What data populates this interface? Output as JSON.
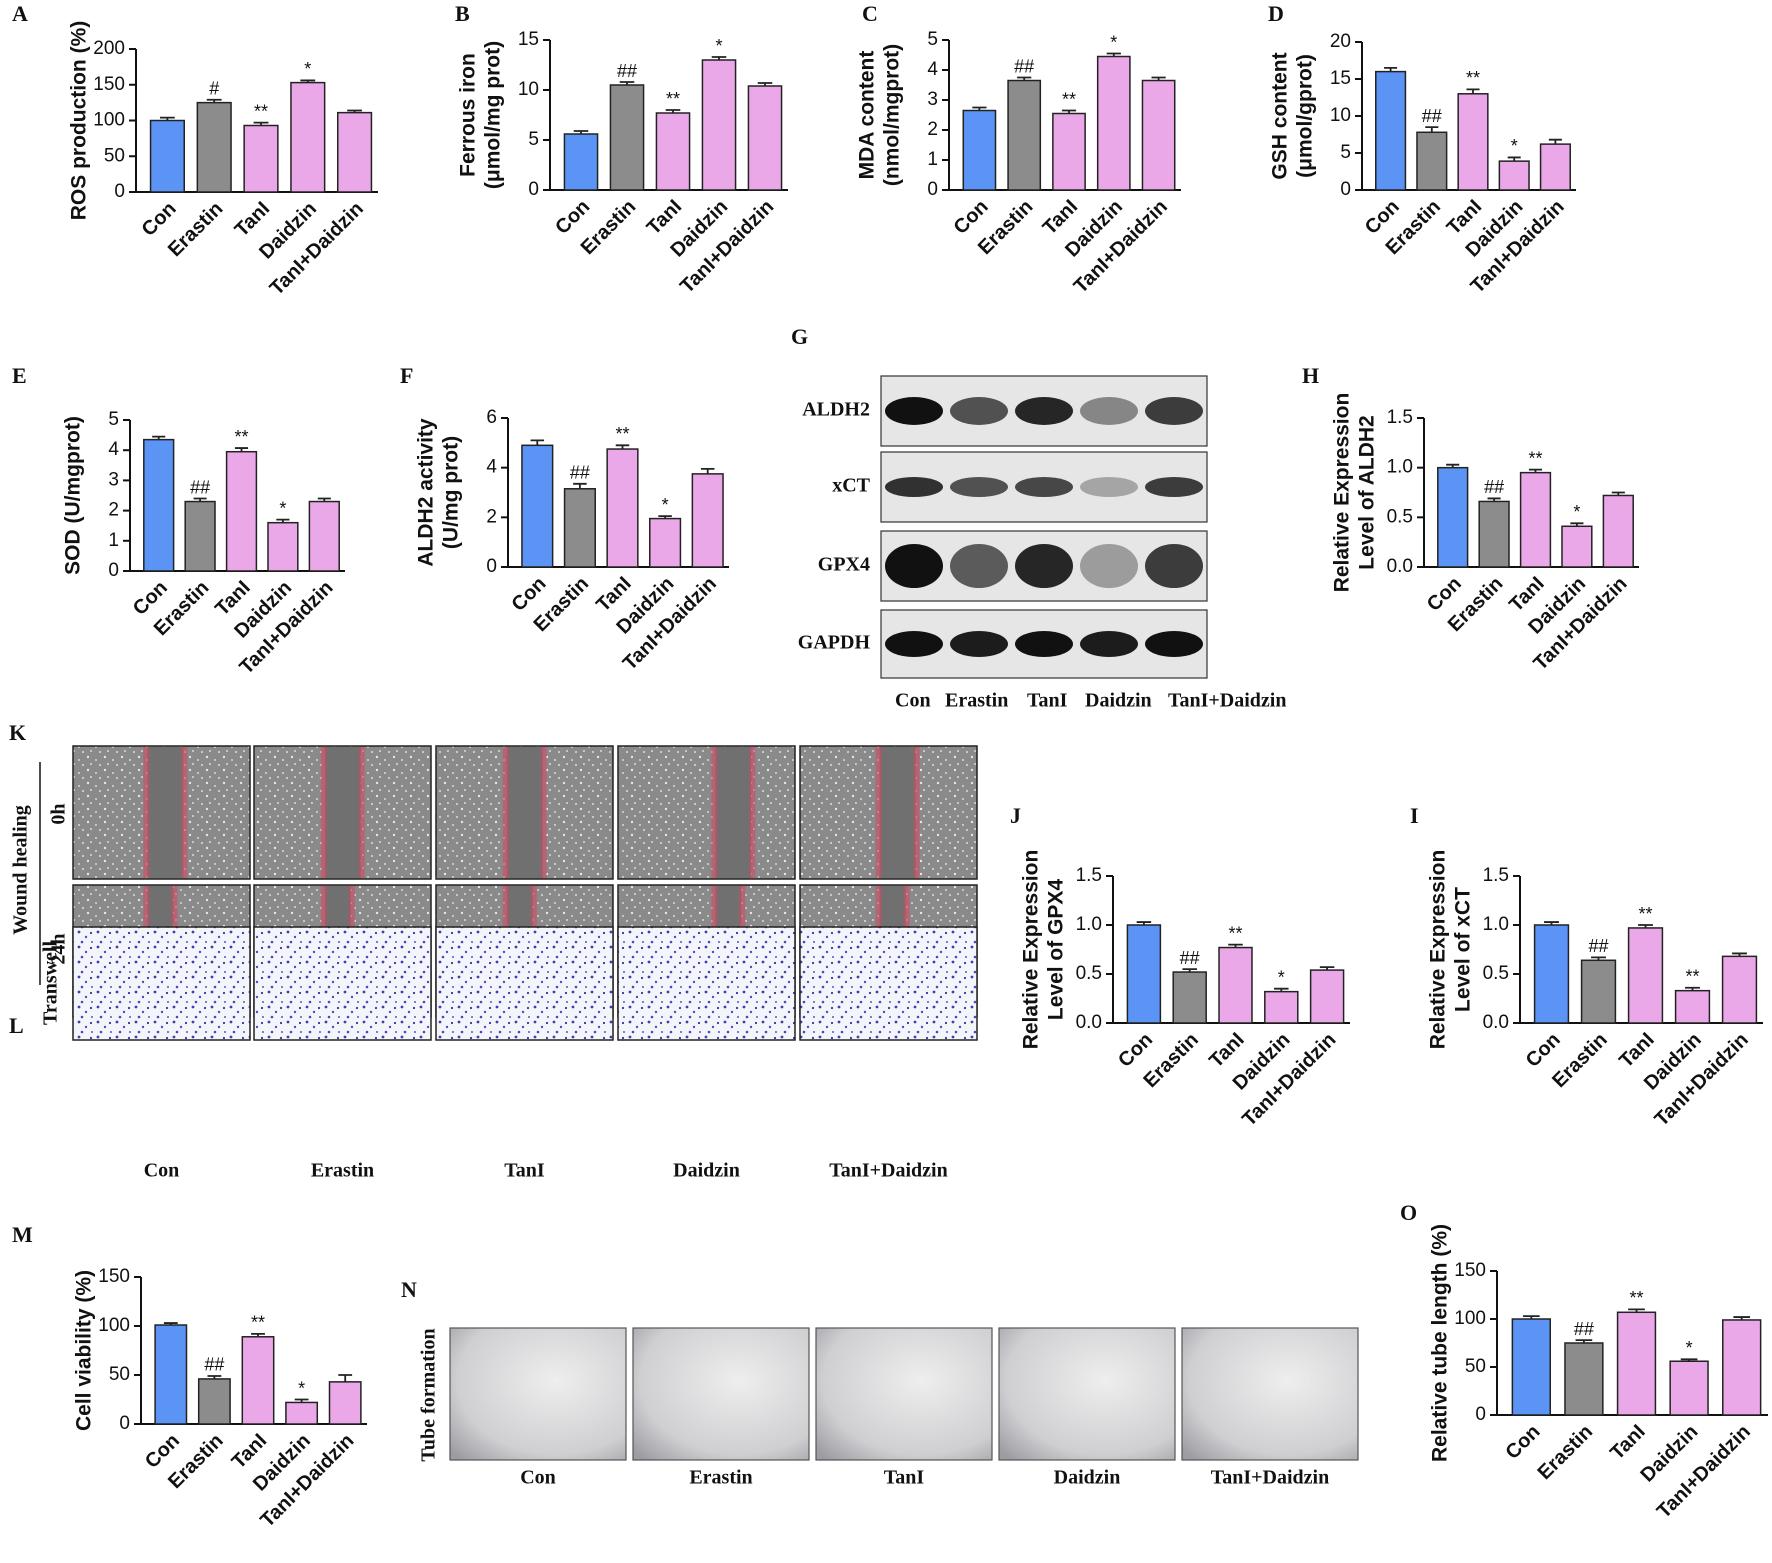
{
  "chart_data": [
    {
      "panel": "A",
      "type": "bar",
      "ylabel": [
        "ROS production (%)"
      ],
      "categories": [
        "Con",
        "Erastin",
        "TanI",
        "Daidzin",
        "TanI+Daidzin"
      ],
      "values": [
        100,
        125,
        93,
        153,
        111
      ],
      "errors": [
        4,
        4,
        4,
        3,
        3
      ],
      "annotations": [
        null,
        "#",
        "**",
        "*",
        null
      ],
      "colors": [
        "#5b94f5",
        "#8c8c8c",
        "#eaa8e8",
        "#eaa8e8",
        "#eaa8e8"
      ],
      "ylim": [
        0,
        200
      ],
      "yticks": [
        0,
        50,
        100,
        150,
        200
      ]
    },
    {
      "panel": "B",
      "type": "bar",
      "ylabel": [
        "Ferrous iron",
        "(μmol/mg prot)"
      ],
      "categories": [
        "Con",
        "Erastin",
        "TanI",
        "Daidzin",
        "TanI+Daidzin"
      ],
      "values": [
        5.6,
        10.5,
        7.7,
        13.0,
        10.4
      ],
      "errors": [
        0.3,
        0.3,
        0.3,
        0.3,
        0.3
      ],
      "annotations": [
        null,
        "##",
        "**",
        "*",
        null
      ],
      "colors": [
        "#5b94f5",
        "#8c8c8c",
        "#eaa8e8",
        "#eaa8e8",
        "#eaa8e8"
      ],
      "ylim": [
        0,
        15
      ],
      "yticks": [
        0,
        5,
        10,
        15
      ]
    },
    {
      "panel": "C",
      "type": "bar",
      "ylabel": [
        "MDA content",
        "(nmol/mgprot)"
      ],
      "categories": [
        "Con",
        "Erastin",
        "TanI",
        "Daidzin",
        "TanI+Daidzin"
      ],
      "values": [
        2.65,
        3.65,
        2.55,
        4.45,
        3.65
      ],
      "errors": [
        0.1,
        0.1,
        0.1,
        0.1,
        0.1
      ],
      "annotations": [
        null,
        "##",
        "**",
        "*",
        null
      ],
      "colors": [
        "#5b94f5",
        "#8c8c8c",
        "#eaa8e8",
        "#eaa8e8",
        "#eaa8e8"
      ],
      "ylim": [
        0,
        5
      ],
      "yticks": [
        0,
        1,
        2,
        3,
        4,
        5
      ]
    },
    {
      "panel": "D",
      "type": "bar",
      "ylabel": [
        "GSH content",
        "(μmol/gprot)"
      ],
      "categories": [
        "Con",
        "Erastin",
        "TanI",
        "Daidzin",
        "TanI+Daidzin"
      ],
      "values": [
        16.0,
        7.8,
        13.0,
        3.9,
        6.2
      ],
      "errors": [
        0.5,
        0.7,
        0.6,
        0.5,
        0.6
      ],
      "annotations": [
        null,
        "##",
        "**",
        "*",
        null
      ],
      "colors": [
        "#5b94f5",
        "#8c8c8c",
        "#eaa8e8",
        "#eaa8e8",
        "#eaa8e8"
      ],
      "ylim": [
        0,
        20
      ],
      "yticks": [
        0,
        5,
        10,
        15,
        20
      ]
    },
    {
      "panel": "E",
      "type": "bar",
      "ylabel": [
        "SOD (U/mgprot)"
      ],
      "categories": [
        "Con",
        "Erastin",
        "TanI",
        "Daidzin",
        "TanI+Daidzin"
      ],
      "values": [
        4.35,
        2.3,
        3.95,
        1.6,
        2.3
      ],
      "errors": [
        0.1,
        0.1,
        0.12,
        0.1,
        0.1
      ],
      "annotations": [
        null,
        "##",
        "**",
        "*",
        null
      ],
      "colors": [
        "#5b94f5",
        "#8c8c8c",
        "#eaa8e8",
        "#eaa8e8",
        "#eaa8e8"
      ],
      "ylim": [
        0,
        5
      ],
      "yticks": [
        0,
        1,
        2,
        3,
        4,
        5
      ]
    },
    {
      "panel": "F",
      "type": "bar",
      "ylabel": [
        "ALDH2 activity",
        "(U/mg prot)"
      ],
      "categories": [
        "Con",
        "Erastin",
        "TanI",
        "Daidzin",
        "TanI+Daidzin"
      ],
      "values": [
        4.9,
        3.15,
        4.75,
        1.95,
        3.75
      ],
      "errors": [
        0.2,
        0.2,
        0.15,
        0.1,
        0.2
      ],
      "annotations": [
        null,
        "##",
        "**",
        "*",
        null
      ],
      "colors": [
        "#5b94f5",
        "#8c8c8c",
        "#eaa8e8",
        "#eaa8e8",
        "#eaa8e8"
      ],
      "ylim": [
        0,
        6
      ],
      "yticks": [
        0,
        2,
        4,
        6
      ]
    },
    {
      "panel": "H",
      "type": "bar",
      "ylabel": [
        "Relative Expression",
        "Level of  ALDH2"
      ],
      "categories": [
        "Con",
        "Erastin",
        "TanI",
        "Daidzin",
        "TanI+Daidzin"
      ],
      "values": [
        1.0,
        0.66,
        0.95,
        0.41,
        0.72
      ],
      "errors": [
        0.03,
        0.03,
        0.03,
        0.03,
        0.03
      ],
      "annotations": [
        null,
        "##",
        "**",
        "*",
        null
      ],
      "colors": [
        "#5b94f5",
        "#8c8c8c",
        "#eaa8e8",
        "#eaa8e8",
        "#eaa8e8"
      ],
      "ylim": [
        0,
        1.5
      ],
      "yticks": [
        {
          "value": 0,
          "label": "0.0"
        },
        0.5,
        {
          "value": 1,
          "label": "1.0"
        },
        1.5
      ]
    },
    {
      "panel": "J",
      "type": "bar",
      "ylabel": [
        "Relative Expression",
        "Level of  GPX4"
      ],
      "categories": [
        "Con",
        "Erastin",
        "TanI",
        "Daidzin",
        "TanI+Daidzin"
      ],
      "values": [
        1.0,
        0.52,
        0.77,
        0.32,
        0.54
      ],
      "errors": [
        0.03,
        0.03,
        0.03,
        0.03,
        0.03
      ],
      "annotations": [
        null,
        "##",
        "**",
        "*",
        null
      ],
      "colors": [
        "#5b94f5",
        "#8c8c8c",
        "#eaa8e8",
        "#eaa8e8",
        "#eaa8e8"
      ],
      "ylim": [
        0,
        1.5
      ],
      "yticks": [
        {
          "value": 0,
          "label": "0.0"
        },
        0.5,
        {
          "value": 1,
          "label": "1.0"
        },
        1.5
      ]
    },
    {
      "panel": "I",
      "type": "bar",
      "ylabel": [
        "Relative Expression",
        "Level of  xCT"
      ],
      "categories": [
        "Con",
        "Erastin",
        "TanI",
        "Daidzin",
        "TanI+Daidzin"
      ],
      "values": [
        1.0,
        0.64,
        0.97,
        0.33,
        0.68
      ],
      "errors": [
        0.03,
        0.03,
        0.03,
        0.03,
        0.03
      ],
      "annotations": [
        null,
        "##",
        "**",
        "**",
        null
      ],
      "colors": [
        "#5b94f5",
        "#8c8c8c",
        "#eaa8e8",
        "#eaa8e8",
        "#eaa8e8"
      ],
      "ylim": [
        0,
        1.5
      ],
      "yticks": [
        {
          "value": 0,
          "label": "0.0"
        },
        0.5,
        {
          "value": 1,
          "label": "1.0"
        },
        1.5
      ]
    },
    {
      "panel": "M",
      "type": "bar",
      "ylabel": [
        "Cell viability (%)"
      ],
      "categories": [
        "Con",
        "Erastin",
        "TanI",
        "Daidzin",
        "TanI+Daidzin"
      ],
      "values": [
        101,
        46,
        89,
        22,
        43
      ],
      "errors": [
        2,
        3,
        3,
        3,
        7
      ],
      "annotations": [
        null,
        "##",
        "**",
        "*",
        null
      ],
      "colors": [
        "#5b94f5",
        "#8c8c8c",
        "#eaa8e8",
        "#eaa8e8",
        "#eaa8e8"
      ],
      "ylim": [
        0,
        150
      ],
      "yticks": [
        0,
        50,
        100,
        150
      ]
    },
    {
      "panel": "O",
      "type": "bar",
      "ylabel": [
        "Relative tube length (%)"
      ],
      "categories": [
        "Con",
        "Erastin",
        "TanI",
        "Daidzin",
        "TanI+Daidzin"
      ],
      "values": [
        100,
        75,
        107,
        56,
        99
      ],
      "errors": [
        3,
        3,
        3,
        2,
        3
      ],
      "annotations": [
        null,
        "##",
        "**",
        "*",
        null
      ],
      "colors": [
        "#5b94f5",
        "#8c8c8c",
        "#eaa8e8",
        "#eaa8e8",
        "#eaa8e8"
      ],
      "ylim": [
        0,
        150
      ],
      "yticks": [
        0,
        50,
        100,
        150
      ]
    }
  ],
  "figure": {
    "panel_G": {
      "letter": "G",
      "rows": [
        "ALDH2",
        "xCT",
        "GPX4",
        "GAPDH"
      ],
      "groups": [
        "Con",
        "Erastin",
        "TanI",
        "Daidzin",
        "TanI+Daidzin"
      ]
    },
    "panel_K": {
      "letter": "K",
      "side_label": "Wound healing",
      "rows": [
        "0h",
        "24h"
      ]
    },
    "panel_L": {
      "letter": "L",
      "side_label": "Transwell",
      "groups": [
        "Con",
        "Erastin",
        "TanI",
        "Daidzin",
        "TanI+Daidzin"
      ]
    },
    "panel_N": {
      "letter": "N",
      "side_label": "Tube formation",
      "groups": [
        "Con",
        "Erastin",
        "TanI",
        "Daidzin",
        "TanI+Daidzin"
      ]
    }
  }
}
